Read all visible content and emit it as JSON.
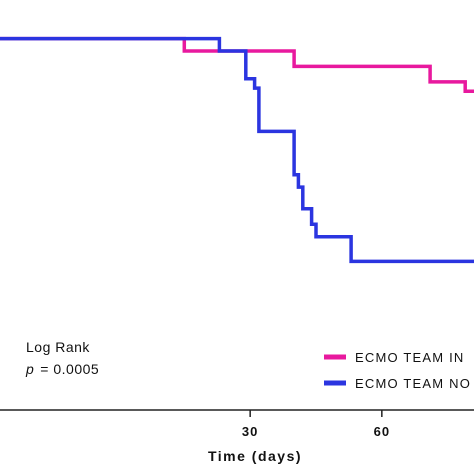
{
  "chart_data": {
    "type": "line",
    "step": true,
    "title": "",
    "xlabel": "Time (days)",
    "ylabel": "",
    "xlim": [
      -27,
      81
    ],
    "ylim": [
      0.4,
      1.03
    ],
    "xticks": [
      30,
      60
    ],
    "series": [
      {
        "name": "ECMO TEAM IN",
        "color": "#e8199e",
        "points": [
          [
            -27,
            1.0
          ],
          [
            15,
            1.0
          ],
          [
            15,
            0.98
          ],
          [
            40,
            0.98
          ],
          [
            40,
            0.955
          ],
          [
            71,
            0.955
          ],
          [
            71,
            0.93
          ],
          [
            79,
            0.93
          ],
          [
            79,
            0.915
          ],
          [
            81,
            0.915
          ]
        ]
      },
      {
        "name": "ECMO TEAM NO",
        "color": "#2b35e0",
        "points": [
          [
            -27,
            1.0
          ],
          [
            23,
            1.0
          ],
          [
            23,
            0.98
          ],
          [
            29,
            0.98
          ],
          [
            29,
            0.935
          ],
          [
            31,
            0.935
          ],
          [
            31,
            0.92
          ],
          [
            32,
            0.92
          ],
          [
            32,
            0.85
          ],
          [
            40,
            0.85
          ],
          [
            40,
            0.78
          ],
          [
            41,
            0.78
          ],
          [
            41,
            0.76
          ],
          [
            42,
            0.76
          ],
          [
            42,
            0.725
          ],
          [
            44,
            0.725
          ],
          [
            44,
            0.7
          ],
          [
            45,
            0.7
          ],
          [
            45,
            0.68
          ],
          [
            53,
            0.68
          ],
          [
            53,
            0.64
          ],
          [
            81,
            0.64
          ]
        ]
      }
    ],
    "legend_placement": "bottom-right",
    "annotation": {
      "line1": "Log Rank",
      "p_symbol": "p",
      "p_value": "= 0.0005"
    }
  },
  "colors": {
    "axis": "#222222",
    "in_series": "#e8199e",
    "no_series": "#2b35e0"
  }
}
